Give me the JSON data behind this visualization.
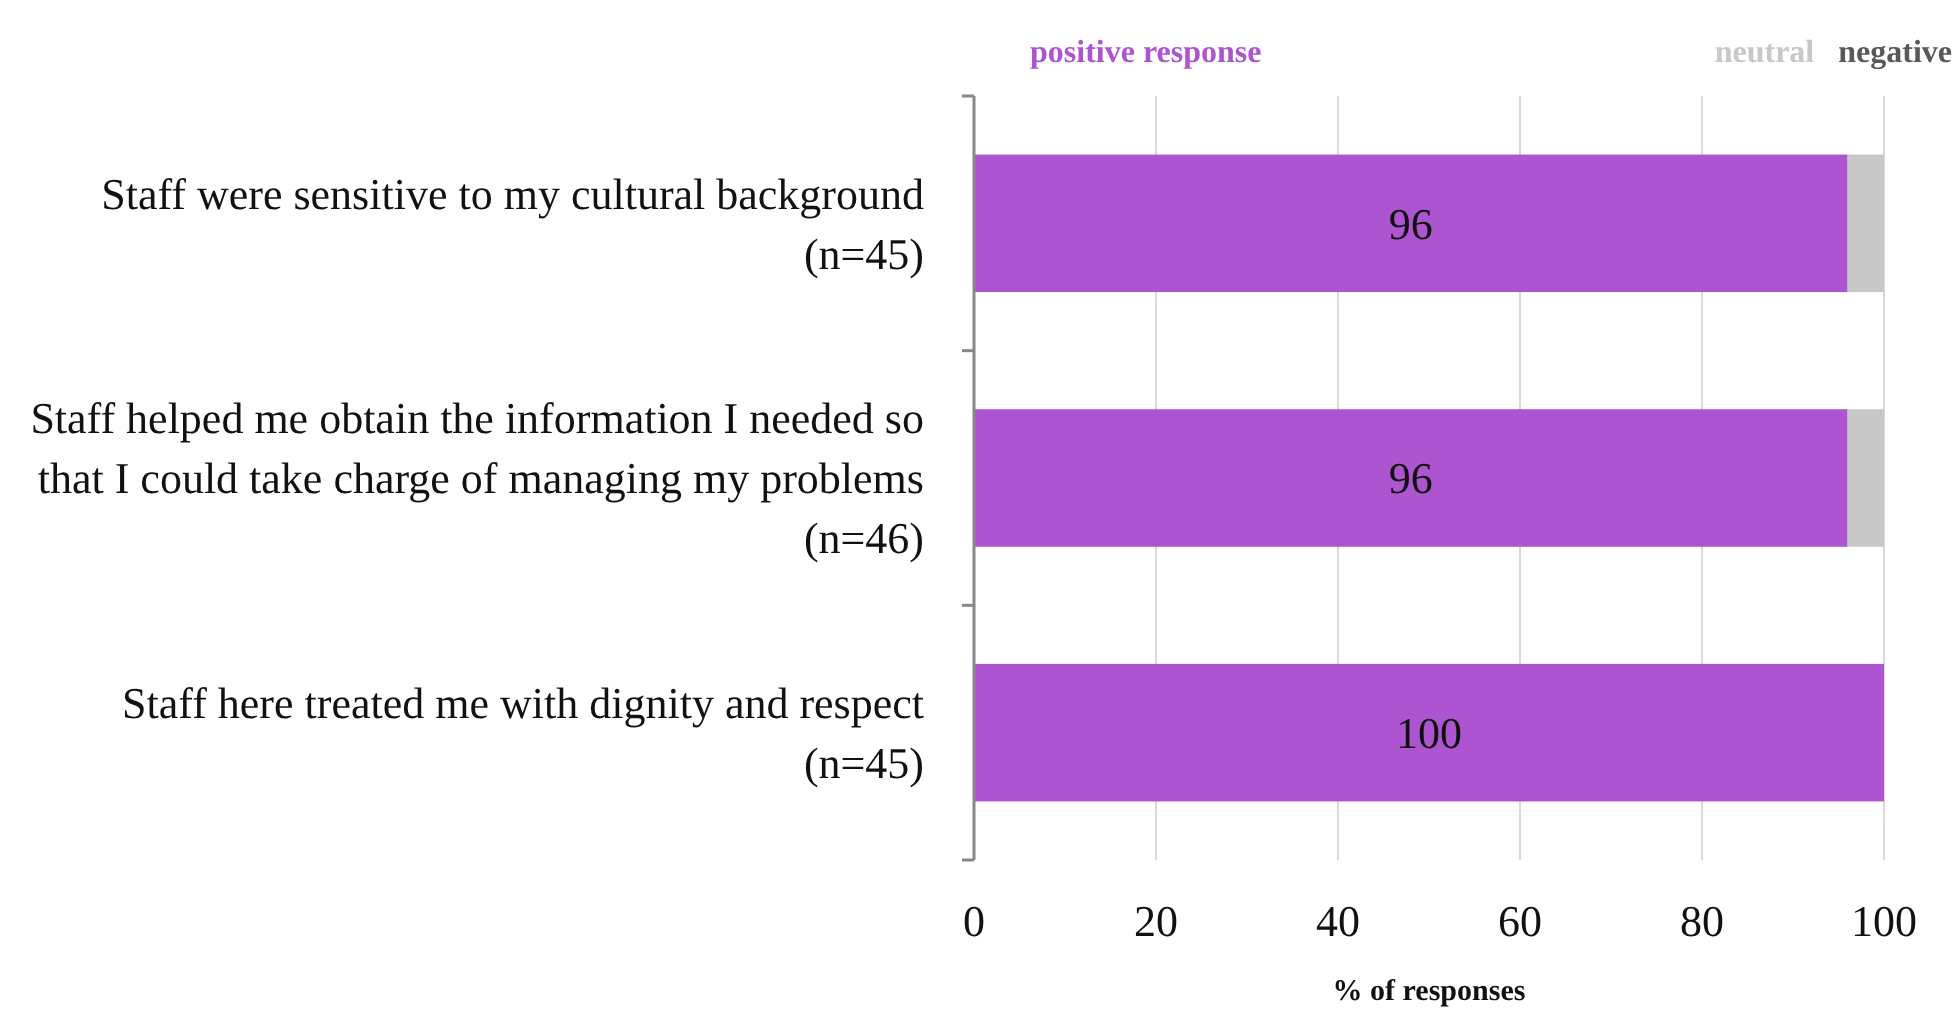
{
  "chart_data": {
    "type": "bar",
    "orientation": "horizontal",
    "stacked": true,
    "categories": [
      "Staff were sensitive to my cultural background (n=45)",
      "Staff helped me obtain the information I needed so that I could take charge of managing my problems (n=46)",
      "Staff here treated me with dignity and respect (n=45)"
    ],
    "series": [
      {
        "name": "positive response",
        "color": "#ad55d1",
        "values": [
          96,
          96,
          100
        ],
        "value_labels": [
          "96",
          "96",
          "100"
        ]
      },
      {
        "name": "neutral",
        "color": "#c8c8c8",
        "values": [
          4,
          4,
          0
        ]
      },
      {
        "name": "negative",
        "color": "#595959",
        "values": [
          0,
          0,
          0
        ]
      }
    ],
    "xlim": [
      0,
      100
    ],
    "xticks": [
      0,
      20,
      40,
      60,
      80,
      100
    ],
    "xlabel": "% of responses",
    "grid": "x",
    "legend": "top right"
  }
}
